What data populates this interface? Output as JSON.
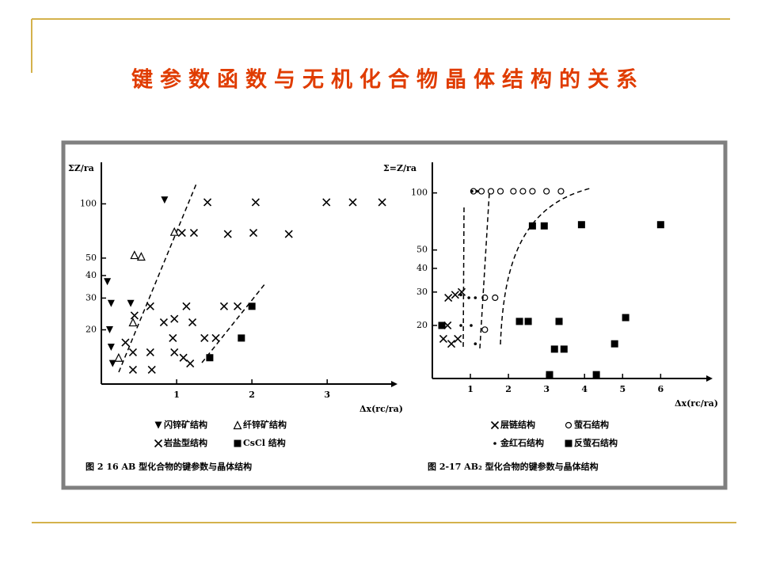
{
  "title": "键参数函数与无机化合物晶体结构的关系",
  "chart_data": [
    {
      "type": "scatter",
      "ylabel": "ΣZ/ra",
      "xlabel": "Δx(rc/ra)",
      "caption": "图 2 16   AB 型化合物的键参数与晶体结构",
      "xlim": [
        0,
        3.85
      ],
      "ylim": [
        10,
        170
      ],
      "ylog": true,
      "xticks": [
        1,
        2,
        3
      ],
      "yticks": [
        20,
        30,
        40,
        50,
        100
      ],
      "series": [
        {
          "name": "闪锌矿结构",
          "marker": "v",
          "color": "#000000",
          "x": [
            0.84,
            0.08,
            0.13,
            0.11,
            0.13,
            0.15,
            0.39
          ],
          "values": [
            105,
            37,
            28,
            20,
            16,
            13,
            28
          ]
        },
        {
          "name": "纤锌矿结构",
          "marker": "^",
          "color": "#000000",
          "x": [
            0.97,
            0.44,
            0.53,
            0.42,
            0.23
          ],
          "values": [
            70,
            52,
            51,
            22,
            14
          ]
        },
        {
          "name": "岩盐型结构",
          "marker": "x",
          "color": "#000000",
          "x": [
            1.41,
            2.05,
            2.99,
            3.34,
            3.73,
            1.07,
            1.23,
            1.68,
            2.02,
            2.49,
            0.44,
            0.65,
            1.13,
            1.63,
            1.81,
            0.83,
            0.97,
            1.21,
            0.95,
            1.37,
            1.52,
            0.42,
            0.65,
            0.97,
            1.09,
            1.18,
            0.42,
            0.67,
            0.32
          ],
          "values": [
            102,
            102,
            102,
            102,
            102,
            69,
            69,
            68,
            69,
            68,
            24,
            27,
            27,
            27,
            27,
            22,
            23,
            22,
            18,
            18,
            18,
            15,
            15,
            15,
            14,
            13,
            12,
            12,
            17
          ]
        },
        {
          "name": "CsCl 结构",
          "marker": "s",
          "color": "#000000",
          "x": [
            2.0,
            1.86,
            1.44
          ],
          "values": [
            27,
            18,
            14
          ]
        }
      ]
    },
    {
      "type": "scatter",
      "ylabel": "Σ=Z/ra",
      "xlabel": "Δx(rc/ra)",
      "caption": "图 2-17   AB₂ 型化合物的键参数与晶体结构",
      "xlim": [
        0,
        7.2
      ],
      "ylim": [
        10.5,
        145
      ],
      "ylog": true,
      "xticks": [
        1,
        2,
        3,
        4,
        5,
        6
      ],
      "yticks": [
        20,
        30,
        40,
        50,
        100
      ],
      "series": [
        {
          "name": "层链结构",
          "marker": "x",
          "color": "#000000",
          "x": [
            0.42,
            0.6,
            0.77,
            0.29,
            0.5,
            0.67,
            0.4
          ],
          "values": [
            28,
            29,
            30,
            17,
            16,
            17,
            20
          ]
        },
        {
          "name": "萤石结构",
          "marker": "o",
          "color": "#000000",
          "x": [
            1.08,
            1.29,
            1.54,
            1.79,
            2.13,
            2.38,
            2.63,
            3.0,
            3.38,
            1.38,
            1.65,
            1.38
          ],
          "values": [
            102,
            102,
            102,
            102,
            102,
            102,
            102,
            102,
            102,
            28,
            28,
            19
          ]
        },
        {
          "name": "金红石结构",
          "marker": ".",
          "color": "#000000",
          "x": [
            1.04,
            1.17,
            0.75,
            0.96,
            1.13,
            1.02,
            1.13,
            0.75
          ],
          "values": [
            102,
            102,
            29,
            28,
            28,
            20,
            16,
            20
          ]
        },
        {
          "name": "反萤石结构",
          "marker": "s",
          "color": "#000000",
          "x": [
            2.63,
            2.94,
            3.92,
            6.0,
            2.29,
            2.52,
            3.33,
            5.08,
            3.21,
            3.46,
            4.79,
            3.08,
            4.31,
            0.25
          ],
          "values": [
            67,
            67,
            68,
            68,
            21,
            21,
            21,
            22,
            15,
            15,
            16,
            11,
            11,
            20
          ]
        }
      ]
    }
  ]
}
